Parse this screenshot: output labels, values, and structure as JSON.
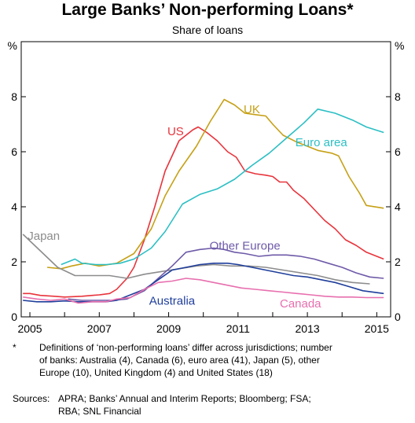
{
  "chart_data": {
    "type": "line",
    "title": "Large Banks’ Non-performing Loans*",
    "subtitle": "Share of loans",
    "ylabel_left": "%",
    "ylabel_right": "%",
    "ylim": [
      0,
      10
    ],
    "xlim": [
      2004.75,
      2015.4
    ],
    "yticks": [
      0,
      2,
      4,
      6,
      8
    ],
    "xticks": [
      2005,
      2007,
      2009,
      2011,
      2013,
      2015
    ],
    "grid": false,
    "series": [
      {
        "name": "US",
        "color": "#e8333b",
        "label_at": [
          2009.2,
          6.6
        ],
        "points": [
          [
            2004.8,
            0.85
          ],
          [
            2005,
            0.85
          ],
          [
            2005.3,
            0.78
          ],
          [
            2005.7,
            0.75
          ],
          [
            2006,
            0.72
          ],
          [
            2006.5,
            0.75
          ],
          [
            2006.8,
            0.78
          ],
          [
            2007.0,
            0.8
          ],
          [
            2007.3,
            0.85
          ],
          [
            2007.5,
            1.0
          ],
          [
            2007.8,
            1.4
          ],
          [
            2008.0,
            1.8
          ],
          [
            2008.3,
            2.8
          ],
          [
            2008.6,
            4.0
          ],
          [
            2008.9,
            5.3
          ],
          [
            2009.3,
            6.4
          ],
          [
            2009.7,
            6.8
          ],
          [
            2009.85,
            6.9
          ],
          [
            2010.1,
            6.7
          ],
          [
            2010.4,
            6.4
          ],
          [
            2010.7,
            6.0
          ],
          [
            2010.95,
            5.8
          ],
          [
            2011.2,
            5.3
          ],
          [
            2011.5,
            5.2
          ],
          [
            2011.8,
            5.15
          ],
          [
            2012.0,
            5.1
          ],
          [
            2012.2,
            4.9
          ],
          [
            2012.4,
            4.9
          ],
          [
            2012.6,
            4.6
          ],
          [
            2012.9,
            4.3
          ],
          [
            2013.2,
            3.9
          ],
          [
            2013.5,
            3.5
          ],
          [
            2013.8,
            3.2
          ],
          [
            2014.1,
            2.8
          ],
          [
            2014.4,
            2.6
          ],
          [
            2014.7,
            2.35
          ],
          [
            2015.2,
            2.1
          ]
        ]
      },
      {
        "name": "UK",
        "color": "#c6a015",
        "label_at": [
          2011.4,
          7.4
        ],
        "points": [
          [
            2005.5,
            1.8
          ],
          [
            2005.9,
            1.75
          ],
          [
            2006.2,
            1.85
          ],
          [
            2006.6,
            1.95
          ],
          [
            2007.0,
            1.85
          ],
          [
            2007.5,
            1.95
          ],
          [
            2008.0,
            2.3
          ],
          [
            2008.5,
            3.2
          ],
          [
            2008.9,
            4.4
          ],
          [
            2009.3,
            5.3
          ],
          [
            2009.8,
            6.2
          ],
          [
            2010.2,
            7.1
          ],
          [
            2010.6,
            7.9
          ],
          [
            2010.9,
            7.7
          ],
          [
            2011.2,
            7.4
          ],
          [
            2011.5,
            7.35
          ],
          [
            2011.8,
            7.3
          ],
          [
            2012.0,
            7.0
          ],
          [
            2012.3,
            6.6
          ],
          [
            2012.7,
            6.35
          ],
          [
            2013.0,
            6.2
          ],
          [
            2013.3,
            6.05
          ],
          [
            2013.7,
            5.95
          ],
          [
            2013.9,
            5.85
          ],
          [
            2014.2,
            5.1
          ],
          [
            2014.5,
            4.5
          ],
          [
            2014.7,
            4.05
          ],
          [
            2015.2,
            3.95
          ]
        ]
      },
      {
        "name": "Euro area",
        "color": "#2bbfc4",
        "label_at": [
          2013.4,
          6.2
        ],
        "points": [
          [
            2005.9,
            1.9
          ],
          [
            2006.3,
            2.1
          ],
          [
            2006.5,
            1.95
          ],
          [
            2006.9,
            1.9
          ],
          [
            2007.2,
            1.9
          ],
          [
            2007.6,
            1.95
          ],
          [
            2008.0,
            2.1
          ],
          [
            2008.5,
            2.5
          ],
          [
            2008.9,
            3.1
          ],
          [
            2009.4,
            4.1
          ],
          [
            2009.9,
            4.45
          ],
          [
            2010.4,
            4.65
          ],
          [
            2010.9,
            5.0
          ],
          [
            2011.4,
            5.5
          ],
          [
            2011.9,
            5.95
          ],
          [
            2012.4,
            6.5
          ],
          [
            2012.9,
            7.05
          ],
          [
            2013.3,
            7.55
          ],
          [
            2013.8,
            7.4
          ],
          [
            2014.3,
            7.15
          ],
          [
            2014.7,
            6.9
          ],
          [
            2015.2,
            6.7
          ]
        ]
      },
      {
        "name": "Japan",
        "color": "#8c8c8c",
        "label_at": [
          2005.4,
          2.8
        ],
        "points": [
          [
            2004.8,
            3.0
          ],
          [
            2005.3,
            2.4
          ],
          [
            2005.8,
            1.8
          ],
          [
            2006.3,
            1.5
          ],
          [
            2006.8,
            1.5
          ],
          [
            2007.3,
            1.5
          ],
          [
            2007.8,
            1.4
          ],
          [
            2008.3,
            1.55
          ],
          [
            2008.8,
            1.65
          ],
          [
            2009.3,
            1.75
          ],
          [
            2009.8,
            1.85
          ],
          [
            2010.3,
            1.9
          ],
          [
            2010.8,
            1.85
          ],
          [
            2011.3,
            1.85
          ],
          [
            2011.8,
            1.8
          ],
          [
            2012.3,
            1.7
          ],
          [
            2012.8,
            1.6
          ],
          [
            2013.3,
            1.5
          ],
          [
            2013.8,
            1.35
          ],
          [
            2014.3,
            1.25
          ],
          [
            2014.8,
            1.2
          ]
        ]
      },
      {
        "name": "Other Europe",
        "color": "#6e5aa8",
        "label_at": [
          2011.2,
          2.45
        ],
        "points": [
          [
            2006.1,
            0.65
          ],
          [
            2006.5,
            0.6
          ],
          [
            2006.9,
            0.6
          ],
          [
            2007.4,
            0.6
          ],
          [
            2007.8,
            0.65
          ],
          [
            2008.3,
            0.95
          ],
          [
            2008.7,
            1.4
          ],
          [
            2009.1,
            1.85
          ],
          [
            2009.5,
            2.35
          ],
          [
            2009.9,
            2.45
          ],
          [
            2010.3,
            2.5
          ],
          [
            2010.6,
            2.45
          ],
          [
            2010.9,
            2.35
          ],
          [
            2011.2,
            2.3
          ],
          [
            2011.6,
            2.2
          ],
          [
            2012.0,
            2.25
          ],
          [
            2012.4,
            2.25
          ],
          [
            2012.8,
            2.2
          ],
          [
            2013.2,
            2.1
          ],
          [
            2013.6,
            1.95
          ],
          [
            2014.0,
            1.8
          ],
          [
            2014.4,
            1.6
          ],
          [
            2014.8,
            1.45
          ],
          [
            2015.2,
            1.4
          ]
        ]
      },
      {
        "name": "Australia",
        "color": "#1f3e9b",
        "label_at": [
          2009.1,
          0.45
        ],
        "points": [
          [
            2004.8,
            0.6
          ],
          [
            2005.2,
            0.55
          ],
          [
            2005.6,
            0.55
          ],
          [
            2006.0,
            0.58
          ],
          [
            2006.4,
            0.55
          ],
          [
            2006.8,
            0.55
          ],
          [
            2007.2,
            0.55
          ],
          [
            2007.5,
            0.6
          ],
          [
            2007.9,
            0.8
          ],
          [
            2008.3,
            1.0
          ],
          [
            2008.7,
            1.35
          ],
          [
            2009.1,
            1.7
          ],
          [
            2009.5,
            1.8
          ],
          [
            2009.9,
            1.9
          ],
          [
            2010.3,
            1.95
          ],
          [
            2010.7,
            1.95
          ],
          [
            2011.0,
            1.9
          ],
          [
            2011.4,
            1.8
          ],
          [
            2011.8,
            1.7
          ],
          [
            2012.2,
            1.6
          ],
          [
            2012.6,
            1.5
          ],
          [
            2013.0,
            1.45
          ],
          [
            2013.4,
            1.35
          ],
          [
            2013.8,
            1.25
          ],
          [
            2014.2,
            1.1
          ],
          [
            2014.6,
            0.95
          ],
          [
            2015.2,
            0.85
          ]
        ]
      },
      {
        "name": "Canada",
        "color": "#e76fae",
        "label_at": [
          2012.8,
          0.35
        ],
        "points": [
          [
            2004.8,
            0.72
          ],
          [
            2005.2,
            0.65
          ],
          [
            2005.6,
            0.6
          ],
          [
            2006.0,
            0.65
          ],
          [
            2006.4,
            0.5
          ],
          [
            2006.8,
            0.55
          ],
          [
            2007.2,
            0.55
          ],
          [
            2007.5,
            0.65
          ],
          [
            2007.9,
            0.7
          ],
          [
            2008.3,
            1.0
          ],
          [
            2008.7,
            1.25
          ],
          [
            2009.1,
            1.3
          ],
          [
            2009.5,
            1.4
          ],
          [
            2009.9,
            1.35
          ],
          [
            2010.3,
            1.25
          ],
          [
            2010.7,
            1.15
          ],
          [
            2011.1,
            1.05
          ],
          [
            2011.5,
            1.0
          ],
          [
            2011.9,
            0.95
          ],
          [
            2012.3,
            0.9
          ],
          [
            2012.7,
            0.85
          ],
          [
            2013.1,
            0.8
          ],
          [
            2013.5,
            0.75
          ],
          [
            2013.9,
            0.72
          ],
          [
            2014.3,
            0.72
          ],
          [
            2014.7,
            0.7
          ],
          [
            2015.2,
            0.7
          ]
        ]
      }
    ]
  },
  "footnote": {
    "marker": "*",
    "lines": [
      "Definitions of ‘non-performing loans’ differ across jurisdictions; number",
      "of banks: Australia (4), Canada (6), euro area (41), Japan (5), other",
      "Europe (10), United Kingdom (4) and United States (18)"
    ]
  },
  "sources": {
    "label": "Sources:",
    "lines": [
      "APRA; Banks’ Annual and Interim Reports; Bloomberg; FSA;",
      "RBA; SNL Financial"
    ]
  }
}
